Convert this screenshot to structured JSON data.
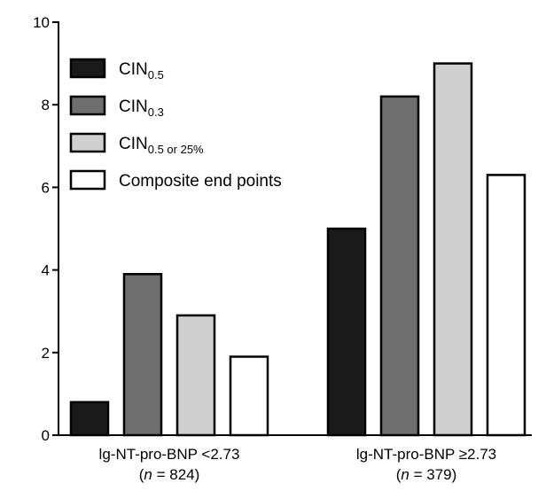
{
  "chart_data": {
    "type": "bar",
    "categories": [
      {
        "label": "lg-NT-pro-BNP <2.73",
        "n_prefix": "(",
        "n_var": "n",
        "n_rest": " = 824)"
      },
      {
        "label": "lg-NT-pro-BNP ≥2.73",
        "n_prefix": "(",
        "n_var": "n",
        "n_rest": " = 379)"
      }
    ],
    "series": [
      {
        "name_main": "CIN",
        "name_sub": "0.5",
        "fill": "#1a1a1a",
        "values": [
          0.8,
          5.0
        ]
      },
      {
        "name_main": "CIN",
        "name_sub": "0.3",
        "fill": "#6e6e6e",
        "values": [
          3.9,
          8.2
        ]
      },
      {
        "name_main": "CIN",
        "name_sub": "0.5 or 25%",
        "fill": "#cfcfcf",
        "values": [
          2.9,
          9.0
        ]
      },
      {
        "name_main": "Composite end points",
        "name_sub": "",
        "fill": "#ffffff",
        "values": [
          1.9,
          6.3
        ]
      }
    ],
    "ylim": [
      0,
      10
    ],
    "yticks": [
      0,
      2,
      4,
      6,
      8,
      10
    ],
    "xlabel": "",
    "ylabel": "",
    "title": "",
    "legend_position": "top-left",
    "grid": false
  }
}
